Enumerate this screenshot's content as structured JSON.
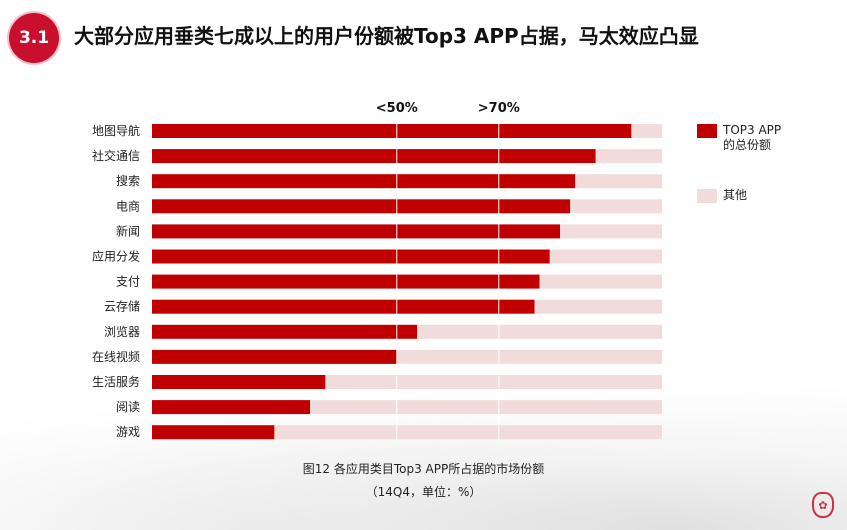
{
  "header": {
    "section_number": "3.1",
    "title": "大部分应用垂类七成以上的用户份额被Top3 APP占据，马太效应凸显"
  },
  "legend": {
    "items": [
      {
        "label": "TOP3 APP\n的总份额",
        "color": "#c00000"
      },
      {
        "label": "其他",
        "color": "#f2dcdb"
      }
    ]
  },
  "caption": {
    "line1": "图12 各应用类目Top3 APP所占据的市场份额",
    "line2": "（14Q4，单位：%）"
  },
  "chart_data": {
    "type": "bar",
    "orientation": "horizontal",
    "stacked": true,
    "categories": [
      "地图导航",
      "社交通信",
      "搜索",
      "电商",
      "新闻",
      "应用分发",
      "支付",
      "云存储",
      "浏览器",
      "在线视频",
      "生活服务",
      "阅读",
      "游戏"
    ],
    "series": [
      {
        "name": "TOP3 APP\n的总份额",
        "color": "#c00000",
        "values": [
          94,
          87,
          83,
          82,
          80,
          78,
          76,
          75,
          52,
          48,
          34,
          31,
          24
        ]
      },
      {
        "name": "其他",
        "color": "#f2dcdb",
        "values": [
          6,
          13,
          17,
          18,
          20,
          22,
          24,
          25,
          48,
          52,
          66,
          69,
          76
        ]
      }
    ],
    "xlim": [
      0,
      100
    ],
    "reference_lines": [
      {
        "value": 48,
        "label": "<50%"
      },
      {
        "value": 68,
        "label": ">70%"
      }
    ],
    "legend_position": "right",
    "grid": false
  }
}
